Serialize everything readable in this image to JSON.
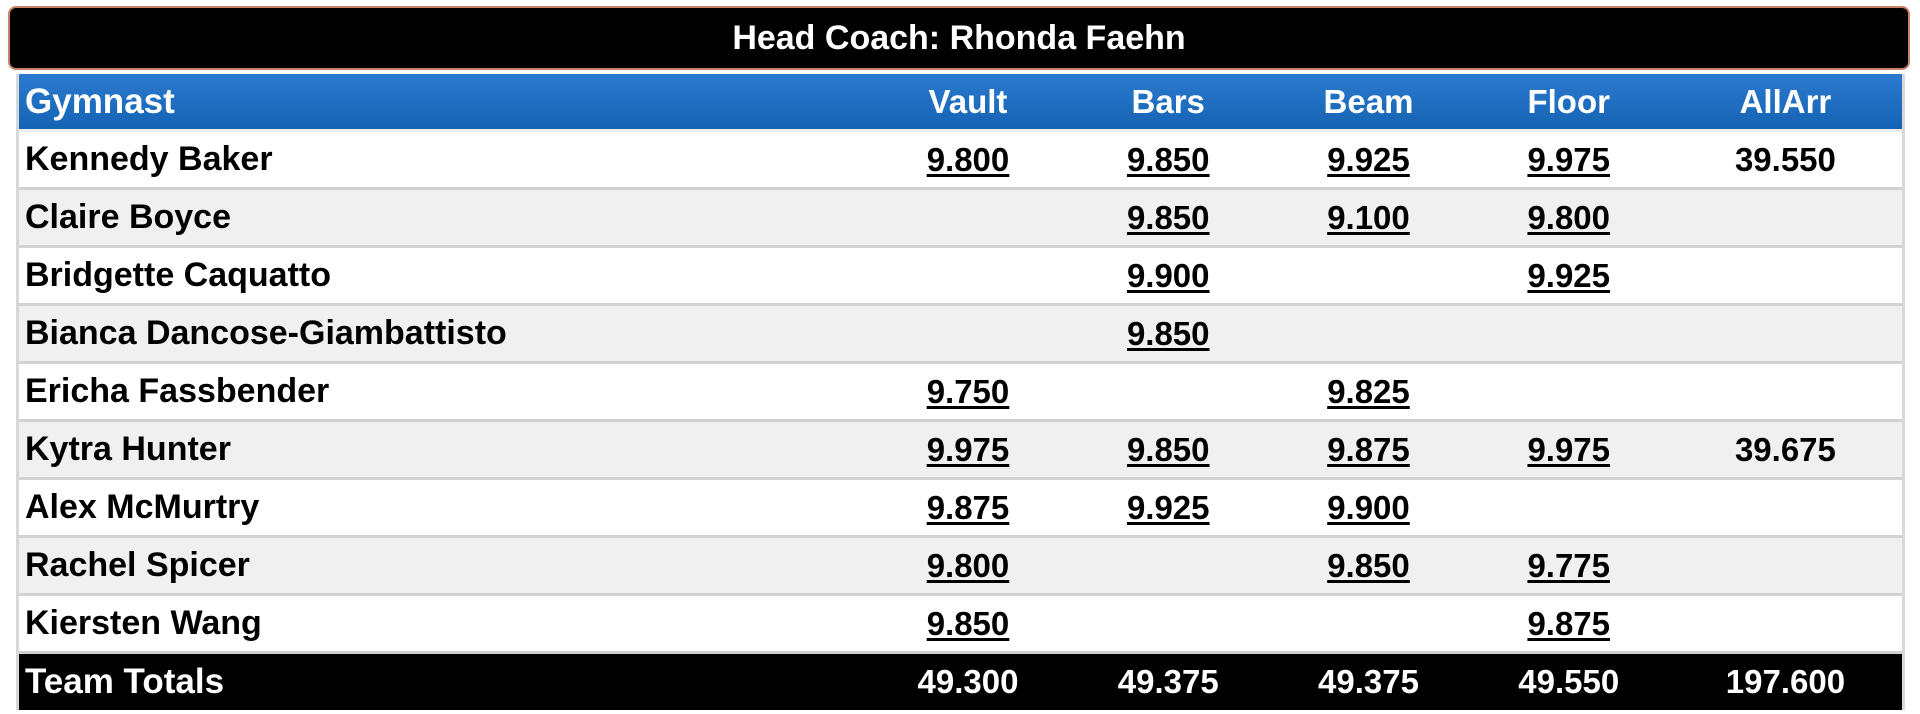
{
  "coach": "Head Coach: Rhonda Faehn",
  "headers": {
    "gymnast": "Gymnast",
    "vault": "Vault",
    "bars": "Bars",
    "beam": "Beam",
    "floor": "Floor",
    "allarr": "AllArr"
  },
  "rows": [
    {
      "name": "Kennedy Baker",
      "vault": "9.800",
      "bars": "9.850",
      "beam": "9.925",
      "floor": "9.975",
      "aa": "39.550"
    },
    {
      "name": "Claire Boyce",
      "vault": "",
      "bars": "9.850",
      "beam": "9.100",
      "floor": "9.800",
      "aa": ""
    },
    {
      "name": "Bridgette Caquatto",
      "vault": "",
      "bars": "9.900",
      "beam": "",
      "floor": "9.925",
      "aa": ""
    },
    {
      "name": "Bianca Dancose-Giambattisto",
      "vault": "",
      "bars": "9.850",
      "beam": "",
      "floor": "",
      "aa": ""
    },
    {
      "name": "Ericha Fassbender",
      "vault": "9.750",
      "bars": "",
      "beam": "9.825",
      "floor": "",
      "aa": ""
    },
    {
      "name": "Kytra Hunter",
      "vault": "9.975",
      "bars": "9.850",
      "beam": "9.875",
      "floor": "9.975",
      "aa": "39.675"
    },
    {
      "name": "Alex McMurtry",
      "vault": "9.875",
      "bars": "9.925",
      "beam": "9.900",
      "floor": "",
      "aa": ""
    },
    {
      "name": "Rachel Spicer",
      "vault": "9.800",
      "bars": "",
      "beam": "9.850",
      "floor": "9.775",
      "aa": ""
    },
    {
      "name": "Kiersten Wang",
      "vault": "9.850",
      "bars": "",
      "beam": "",
      "floor": "9.875",
      "aa": ""
    }
  ],
  "totals": {
    "label": "Team Totals",
    "vault": "49.300",
    "bars": "49.375",
    "beam": "49.375",
    "floor": "49.550",
    "aa": "197.600"
  },
  "colors": {
    "header_blue": "#1a6cc0",
    "bar_black": "#000000",
    "row_grey": "#f0f0f0"
  }
}
